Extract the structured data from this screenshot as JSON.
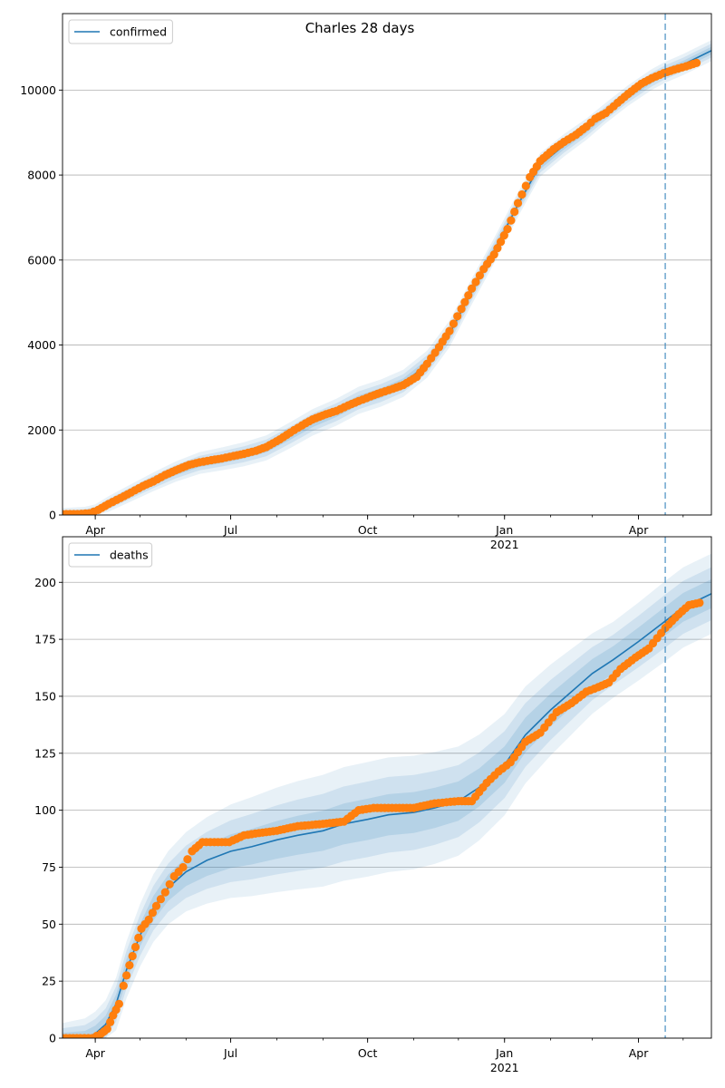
{
  "figure": {
    "title": "Charles 28 days"
  },
  "colors": {
    "model_line": "#1f77b4",
    "band": "#1f77b4",
    "observed": "#ff7f0e",
    "grid": "#b0b0b0",
    "forecast_line": "#1f77b4"
  },
  "chart_data": [
    {
      "type": "line",
      "legend": [
        "confirmed"
      ],
      "legend_placement": "upper left",
      "grid": "y",
      "xlim": [
        "2020-03-10",
        "2021-05-20"
      ],
      "ylim": [
        0,
        11800
      ],
      "yticks": [
        0,
        2000,
        4000,
        6000,
        8000,
        10000
      ],
      "xticks": [
        {
          "date": "2020-04-01",
          "label": "Apr"
        },
        {
          "date": "2020-07-01",
          "label": "Jul"
        },
        {
          "date": "2020-10-01",
          "label": "Oct"
        },
        {
          "date": "2021-01-01",
          "label": "Jan",
          "sublabel": "2021"
        },
        {
          "date": "2021-04-01",
          "label": "Apr"
        }
      ],
      "forecast_start": "2021-04-19",
      "series": [
        {
          "name": "confirmed",
          "kind": "model",
          "x": [
            "2020-03-10",
            "2020-03-25",
            "2020-04-01",
            "2020-04-10",
            "2020-04-25",
            "2020-05-10",
            "2020-05-25",
            "2020-06-10",
            "2020-06-25",
            "2020-07-10",
            "2020-07-25",
            "2020-08-10",
            "2020-08-25",
            "2020-09-10",
            "2020-09-25",
            "2020-10-10",
            "2020-10-25",
            "2020-11-10",
            "2020-11-25",
            "2020-12-10",
            "2020-12-25",
            "2021-01-10",
            "2021-01-25",
            "2021-02-10",
            "2021-02-25",
            "2021-03-10",
            "2021-03-25",
            "2021-04-10",
            "2021-04-19",
            "2021-05-01",
            "2021-05-20"
          ],
          "y": [
            20,
            30,
            80,
            260,
            520,
            780,
            1020,
            1220,
            1320,
            1430,
            1580,
            1880,
            2180,
            2420,
            2700,
            2870,
            3100,
            3550,
            4260,
            5260,
            6220,
            7300,
            8240,
            8700,
            9080,
            9460,
            9870,
            10250,
            10420,
            10600,
            10930
          ]
        },
        {
          "name": "confirmed",
          "kind": "observed",
          "x": [
            "2020-03-10",
            "2020-03-20",
            "2020-03-28",
            "2020-04-03",
            "2020-04-10",
            "2020-04-18",
            "2020-04-25",
            "2020-05-03",
            "2020-05-10",
            "2020-05-18",
            "2020-05-25",
            "2020-06-03",
            "2020-06-10",
            "2020-06-18",
            "2020-06-25",
            "2020-07-03",
            "2020-07-10",
            "2020-07-18",
            "2020-07-25",
            "2020-08-03",
            "2020-08-10",
            "2020-08-18",
            "2020-08-25",
            "2020-09-03",
            "2020-09-10",
            "2020-09-18",
            "2020-09-25",
            "2020-10-03",
            "2020-10-10",
            "2020-10-18",
            "2020-10-25",
            "2020-11-03",
            "2020-11-10",
            "2020-11-18",
            "2020-11-25",
            "2020-12-03",
            "2020-12-10",
            "2020-12-18",
            "2020-12-25",
            "2021-01-03",
            "2021-01-10",
            "2021-01-18",
            "2021-01-25",
            "2021-02-03",
            "2021-02-10",
            "2021-02-18",
            "2021-02-25",
            "2021-03-03",
            "2021-03-10",
            "2021-03-18",
            "2021-03-25",
            "2021-04-03",
            "2021-04-10",
            "2021-04-18",
            "2021-04-25",
            "2021-05-03",
            "2021-05-10"
          ],
          "y": [
            20,
            22,
            40,
            120,
            260,
            400,
            530,
            680,
            790,
            940,
            1050,
            1180,
            1240,
            1290,
            1330,
            1390,
            1440,
            1510,
            1600,
            1780,
            1940,
            2110,
            2250,
            2370,
            2450,
            2580,
            2680,
            2790,
            2880,
            2970,
            3060,
            3250,
            3560,
            3950,
            4330,
            4850,
            5330,
            5790,
            6130,
            6730,
            7340,
            7950,
            8330,
            8610,
            8780,
            8950,
            9140,
            9330,
            9460,
            9700,
            9910,
            10150,
            10280,
            10400,
            10480,
            10560,
            10640
          ]
        }
      ]
    },
    {
      "type": "line",
      "legend": [
        "deaths"
      ],
      "legend_placement": "upper left",
      "grid": "y",
      "xlim": [
        "2020-03-10",
        "2021-05-20"
      ],
      "ylim": [
        0,
        220
      ],
      "yticks": [
        0,
        25,
        50,
        75,
        100,
        125,
        150,
        175,
        200
      ],
      "xticks": [
        {
          "date": "2020-04-01",
          "label": "Apr"
        },
        {
          "date": "2020-07-01",
          "label": "Jul"
        },
        {
          "date": "2020-10-01",
          "label": "Oct"
        },
        {
          "date": "2021-01-01",
          "label": "Jan",
          "sublabel": "2021"
        },
        {
          "date": "2021-04-01",
          "label": "Apr"
        }
      ],
      "forecast_start": "2021-04-19",
      "series": [
        {
          "name": "deaths",
          "kind": "model",
          "x": [
            "2020-03-10",
            "2020-03-25",
            "2020-04-01",
            "2020-04-08",
            "2020-04-15",
            "2020-04-22",
            "2020-05-01",
            "2020-05-10",
            "2020-05-20",
            "2020-06-01",
            "2020-06-15",
            "2020-07-01",
            "2020-07-15",
            "2020-08-01",
            "2020-08-15",
            "2020-09-01",
            "2020-09-15",
            "2020-10-01",
            "2020-10-15",
            "2020-11-01",
            "2020-11-15",
            "2020-12-01",
            "2020-12-15",
            "2021-01-01",
            "2021-01-15",
            "2021-02-01",
            "2021-02-15",
            "2021-03-01",
            "2021-03-15",
            "2021-04-01",
            "2021-04-19",
            "2021-05-01",
            "2021-05-20"
          ],
          "y": [
            0,
            0,
            2,
            6,
            15,
            30,
            45,
            57,
            66,
            73,
            78,
            82,
            84,
            87,
            89,
            91,
            94,
            96,
            98,
            99,
            101,
            104,
            110,
            120,
            133,
            144,
            152,
            160,
            166,
            174,
            183,
            189,
            195
          ]
        },
        {
          "name": "deaths",
          "kind": "observed",
          "x": [
            "2020-03-10",
            "2020-03-22",
            "2020-03-30",
            "2020-04-05",
            "2020-04-09",
            "2020-04-13",
            "2020-04-17",
            "2020-04-20",
            "2020-04-24",
            "2020-04-28",
            "2020-05-02",
            "2020-05-07",
            "2020-05-12",
            "2020-05-18",
            "2020-05-24",
            "2020-05-30",
            "2020-06-05",
            "2020-06-12",
            "2020-06-20",
            "2020-06-30",
            "2020-07-10",
            "2020-07-20",
            "2020-08-01",
            "2020-08-15",
            "2020-09-01",
            "2020-09-15",
            "2020-09-25",
            "2020-10-05",
            "2020-10-20",
            "2020-11-01",
            "2020-11-15",
            "2020-12-01",
            "2020-12-10",
            "2020-12-20",
            "2020-12-28",
            "2021-01-05",
            "2021-01-15",
            "2021-01-25",
            "2021-02-05",
            "2021-02-15",
            "2021-02-25",
            "2021-03-05",
            "2021-03-12",
            "2021-03-20",
            "2021-03-30",
            "2021-04-08",
            "2021-04-19",
            "2021-04-28",
            "2021-05-05",
            "2021-05-12"
          ],
          "y": [
            0,
            0,
            0,
            2,
            4,
            10,
            15,
            23,
            32,
            40,
            48,
            52,
            58,
            64,
            71,
            75,
            82,
            86,
            86,
            86,
            89,
            90,
            91,
            93,
            94,
            95,
            100,
            101,
            101,
            101,
            103,
            104,
            104,
            112,
            117,
            121,
            130,
            134,
            143,
            147,
            152,
            154,
            156,
            162,
            167,
            171,
            180,
            186,
            190,
            191
          ]
        }
      ]
    }
  ]
}
